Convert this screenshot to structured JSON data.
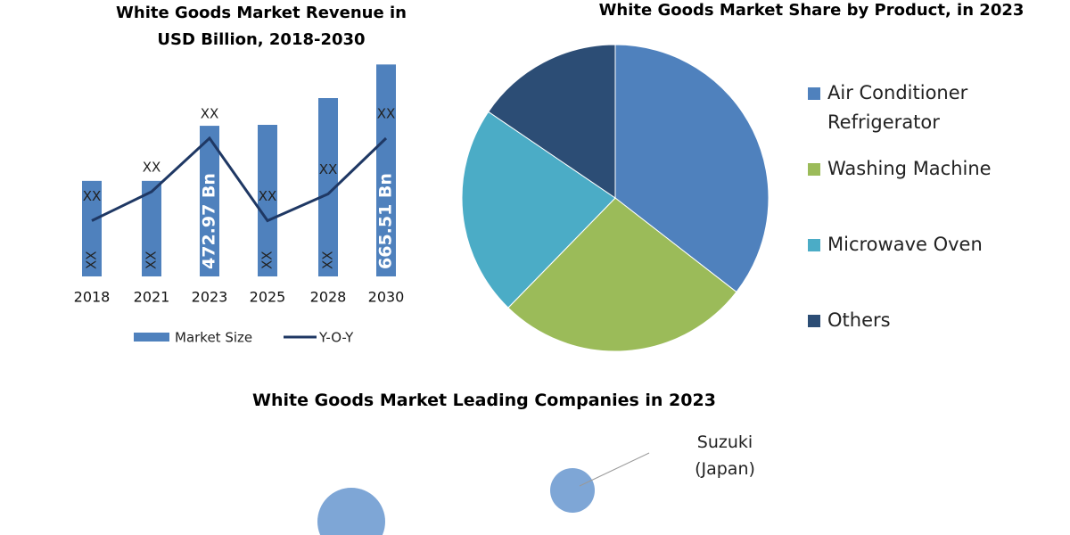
{
  "chart_data": [
    {
      "type": "bar",
      "title": "White Goods Market Revenue in USD Billion, 2018-2030",
      "categories": [
        "2018",
        "2021",
        "2023",
        "2025",
        "2028",
        "2030"
      ],
      "series": [
        {
          "name": "Market Size",
          "color": "#4f81bd",
          "values": [
            300,
            300,
            472.97,
            476,
            560,
            665.51
          ],
          "value_labels": [
            "XX",
            "XX",
            "472.97 Bn",
            "XX",
            "XX",
            "665.51 Bn"
          ]
        },
        {
          "name": "Y-O-Y",
          "color": "#1f3864",
          "type": "line",
          "axis": "y2",
          "values": [
            25,
            38,
            62,
            25,
            37,
            62
          ],
          "value_labels": [
            "XX",
            "XX",
            "XX",
            "XX",
            "XX",
            "XX"
          ]
        }
      ],
      "ylim": [
        0,
        700
      ],
      "y2lim": [
        0,
        100
      ]
    },
    {
      "type": "pie",
      "title": "White Goods Market Share by Product, in 2023",
      "categories": [
        "Air Conditioner Refrigerator",
        "Washing Machine",
        "Microwave Oven",
        "Others"
      ],
      "values": [
        35.5,
        26.8,
        22.2,
        15.5
      ],
      "colors": [
        "#4f81bd",
        "#9bbb59",
        "#4bacc6",
        "#2c4d75"
      ]
    },
    {
      "type": "bubble",
      "title": "White Goods Market Leading Companies in 2023",
      "annotations": [
        "Suzuki (Japan)"
      ]
    }
  ]
}
